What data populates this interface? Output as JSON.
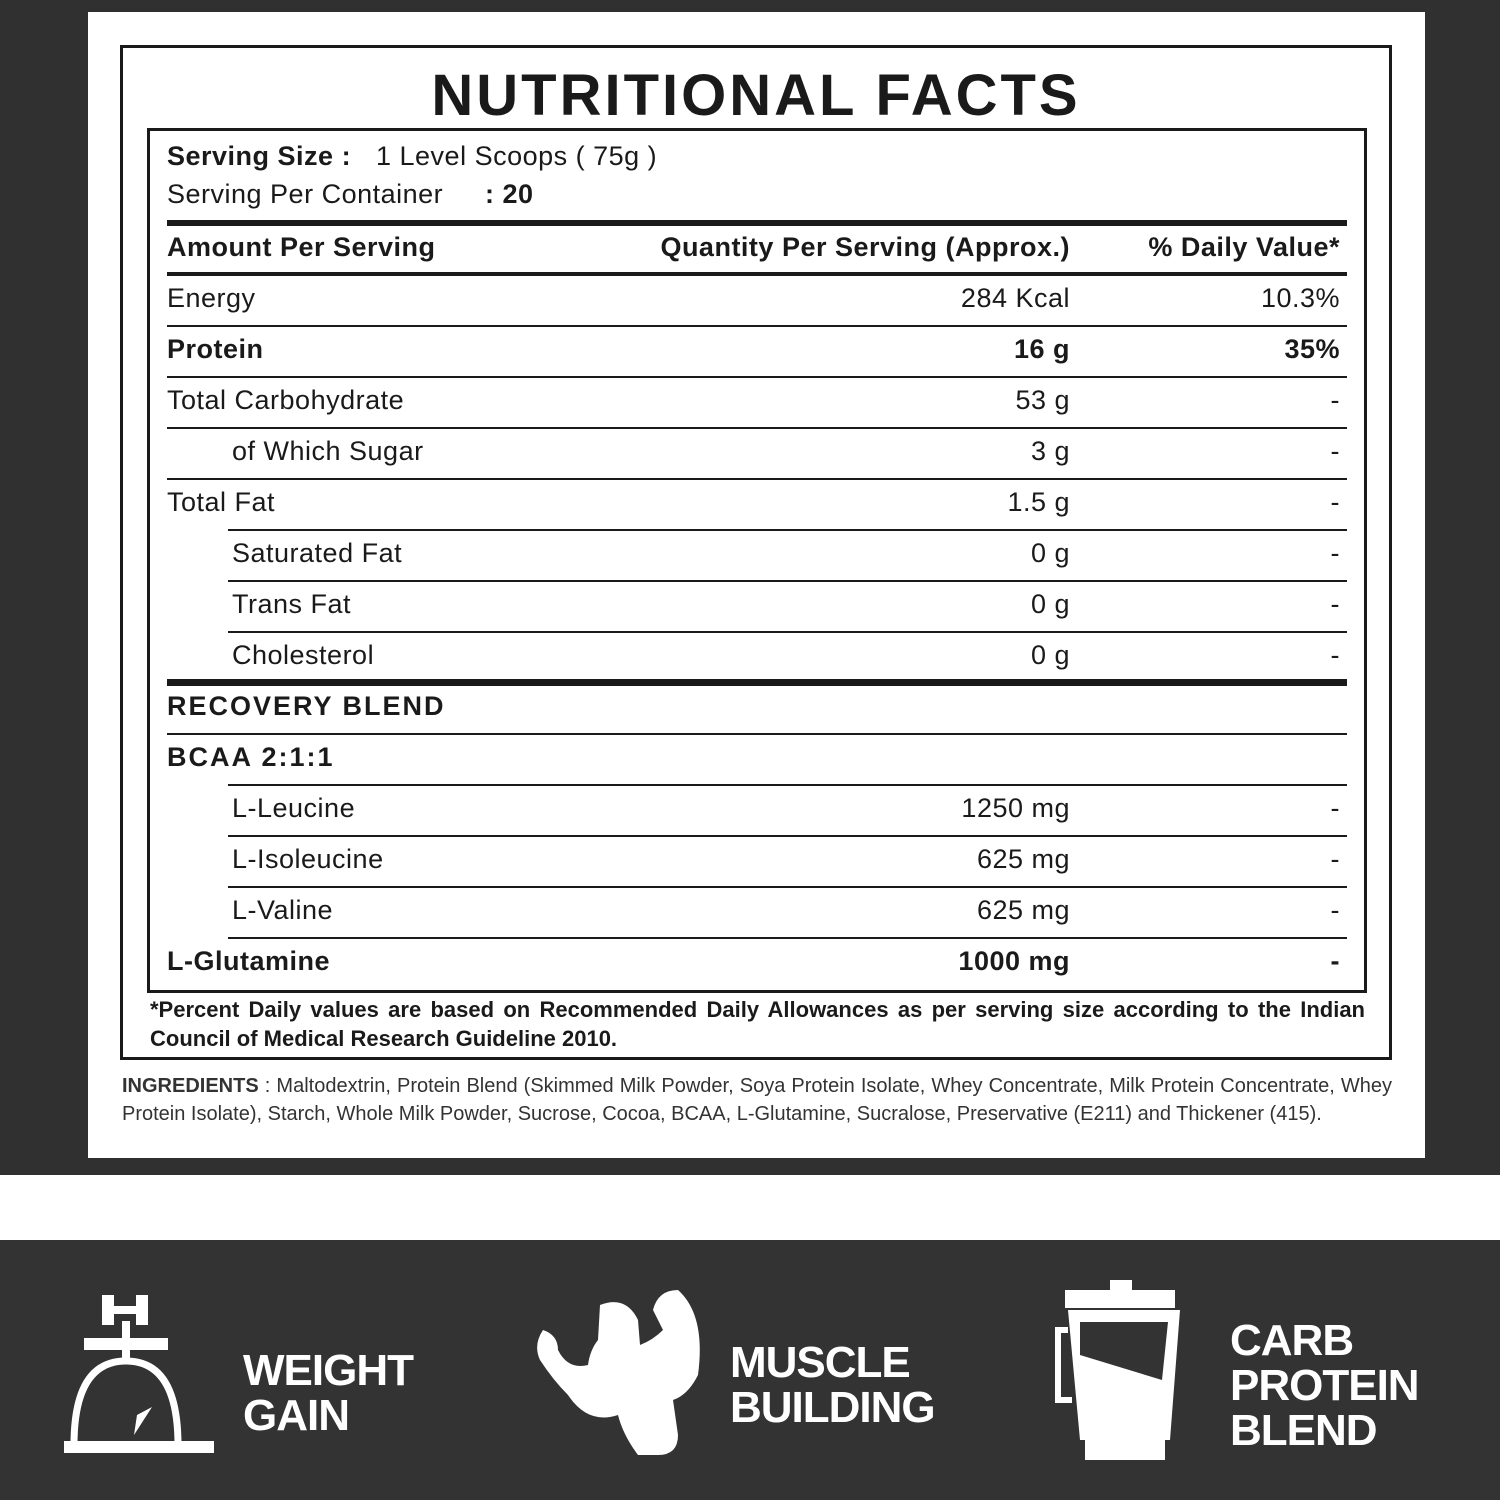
{
  "title": "NUTRITIONAL FACTS",
  "serving_size_label": "Serving Size :",
  "serving_size_value": "1 Level Scoops ( 75g )",
  "servings_label": "Serving Per Container",
  "servings_value": ": 20",
  "headers": {
    "amount": "Amount Per Serving",
    "quantity": "Quantity Per Serving (Approx.)",
    "dv": "% Daily Value*"
  },
  "rows": [
    {
      "name": "Energy",
      "qty": "284 Kcal",
      "dv": "10.3%"
    },
    {
      "name": "Protein",
      "qty": "16 g",
      "dv": "35%"
    },
    {
      "name": "Total Carbohydrate",
      "qty": "53 g",
      "dv": "-"
    },
    {
      "name": "of Which Sugar",
      "qty": "3 g",
      "dv": "-"
    },
    {
      "name": "Total Fat",
      "qty": "1.5 g",
      "dv": "-"
    },
    {
      "name": "Saturated Fat",
      "qty": "0 g",
      "dv": "-"
    },
    {
      "name": "Trans Fat",
      "qty": "0 g",
      "dv": "-"
    },
    {
      "name": "Cholesterol",
      "qty": "0 g",
      "dv": "-"
    },
    {
      "name": "RECOVERY BLEND",
      "qty": "",
      "dv": ""
    },
    {
      "name": "BCAA 2:1:1",
      "qty": "",
      "dv": ""
    },
    {
      "name": "L-Leucine",
      "qty": "1250 mg",
      "dv": "-"
    },
    {
      "name": "L-Isoleucine",
      "qty": "625 mg",
      "dv": "-"
    },
    {
      "name": "L-Valine",
      "qty": "625 mg",
      "dv": "-"
    },
    {
      "name": "L-Glutamine",
      "qty": "1000 mg",
      "dv": "-"
    }
  ],
  "footnote": "*Percent Daily values are based on Recommended Daily Allowances as per serving size according to the Indian Council of Medical Research Guideline 2010.",
  "ingredients_label": "INGREDIENTS",
  "ingredients": ": Maltodextrin, Protein Blend (Skimmed Milk Powder, Soya Protein Isolate, Whey Concentrate, Milk Protein Concentrate, Whey Protein Isolate), Starch, Whole Milk Powder, Sucrose, Cocoa, BCAA, L-Glutamine, Sucralose, Preservative (E211) and Thickener (415).",
  "features": [
    {
      "icon": "weighing-scale-dumbbell-icon",
      "line1": "WEIGHT",
      "line2": "GAIN",
      "line3": ""
    },
    {
      "icon": "bodybuilder-icon",
      "line1": "MUSCLE",
      "line2": "BUILDING",
      "line3": ""
    },
    {
      "icon": "blender-icon",
      "line1": "CARB",
      "line2": "PROTEIN",
      "line3": "BLEND"
    }
  ],
  "colors": {
    "dark_bg": "#303030",
    "text": "#1a1a1a",
    "white": "#ffffff"
  }
}
